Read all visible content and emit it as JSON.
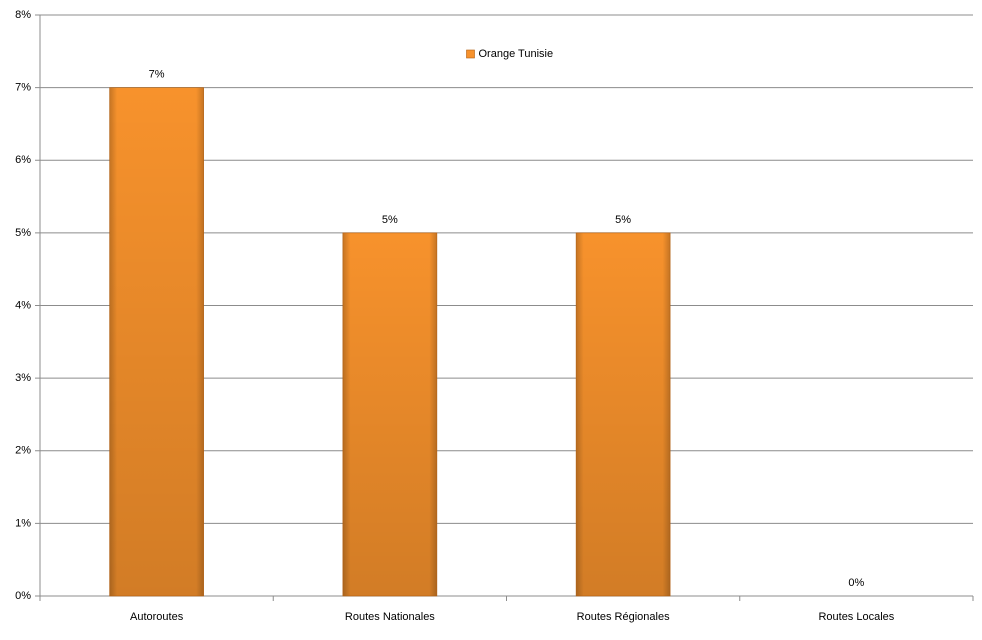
{
  "chart_data": {
    "type": "bar",
    "categories": [
      "Autoroutes",
      "Routes Nationales",
      "Routes Régionales",
      "Routes Locales"
    ],
    "series": [
      {
        "name": "Orange Tunisie",
        "color": "#f7922c",
        "values": [
          7,
          5,
          5,
          0
        ],
        "value_labels": [
          "7%",
          "5%",
          "5%",
          "0%"
        ]
      }
    ],
    "ylim": [
      0,
      8
    ],
    "yticks": [
      {
        "value": 0,
        "label": "0%"
      },
      {
        "value": 1,
        "label": "1%"
      },
      {
        "value": 2,
        "label": "2%"
      },
      {
        "value": 3,
        "label": "3%"
      },
      {
        "value": 4,
        "label": "4%"
      },
      {
        "value": 5,
        "label": "5%"
      },
      {
        "value": 6,
        "label": "6%"
      },
      {
        "value": 7,
        "label": "7%"
      },
      {
        "value": 8,
        "label": "8%"
      }
    ],
    "grid": true,
    "legend": "top"
  }
}
